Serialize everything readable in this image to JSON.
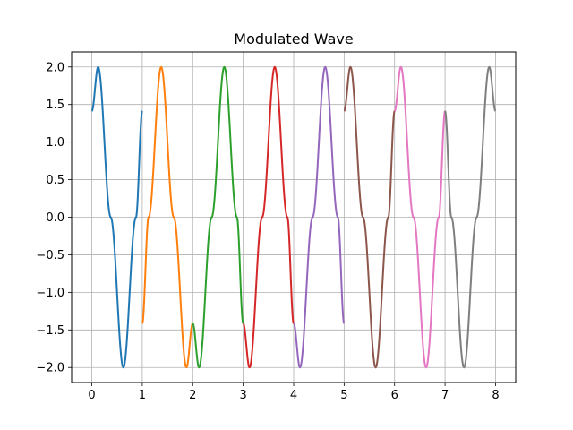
{
  "chart_data": {
    "type": "line",
    "title": "Modulated Wave",
    "xlabel": "",
    "ylabel": "",
    "xlim": [
      -0.4,
      8.4
    ],
    "ylim": [
      -2.2,
      2.2
    ],
    "xticks": [
      0,
      1,
      2,
      3,
      4,
      5,
      6,
      7,
      8
    ],
    "xtick_labels": [
      "0",
      "1",
      "2",
      "3",
      "4",
      "5",
      "6",
      "7",
      "8"
    ],
    "yticks": [
      2.0,
      1.5,
      1.0,
      0.5,
      0.0,
      -0.5,
      -1.0,
      -1.5,
      -2.0
    ],
    "ytick_labels": [
      "2.0",
      "1.5",
      "1.0",
      "0.5",
      "0.0",
      "−0.5",
      "−1.0",
      "−1.5",
      "−2.0"
    ],
    "grid": true,
    "legend": "none",
    "series": [
      {
        "color": "#1f77b4",
        "x": [
          0.0,
          0.125,
          0.375,
          0.625,
          0.875,
          1.0
        ],
        "y": [
          1.414,
          2.0,
          0.0,
          -2.0,
          0.0,
          1.414
        ]
      },
      {
        "color": "#ff7f0e",
        "x": [
          1.0,
          1.125,
          1.375,
          1.625,
          1.875,
          2.0
        ],
        "y": [
          -1.414,
          0.0,
          2.0,
          0.0,
          -2.0,
          -1.414
        ]
      },
      {
        "color": "#2ca02c",
        "x": [
          2.0,
          2.125,
          2.375,
          2.625,
          2.875,
          3.0
        ],
        "y": [
          -1.414,
          -2.0,
          0.0,
          2.0,
          0.0,
          -1.414
        ]
      },
      {
        "color": "#d62728",
        "x": [
          3.0,
          3.125,
          3.375,
          3.625,
          3.875,
          4.0
        ],
        "y": [
          -1.414,
          -2.0,
          0.0,
          2.0,
          0.0,
          -1.414
        ]
      },
      {
        "color": "#9467bd",
        "x": [
          4.0,
          4.125,
          4.375,
          4.625,
          4.875,
          5.0
        ],
        "y": [
          -1.414,
          -2.0,
          0.0,
          2.0,
          0.0,
          -1.414
        ]
      },
      {
        "color": "#8c564b",
        "x": [
          5.0,
          5.125,
          5.375,
          5.625,
          5.875,
          6.0
        ],
        "y": [
          1.414,
          2.0,
          0.0,
          -2.0,
          0.0,
          1.414
        ]
      },
      {
        "color": "#e377c2",
        "x": [
          6.0,
          6.125,
          6.375,
          6.625,
          6.875,
          7.0
        ],
        "y": [
          1.414,
          2.0,
          0.0,
          -2.0,
          0.0,
          1.414
        ]
      },
      {
        "color": "#7f7f7f",
        "x": [
          7.0,
          7.125,
          7.375,
          7.625,
          7.875,
          8.0
        ],
        "y": [
          1.414,
          0.0,
          -2.0,
          0.0,
          2.0,
          1.414
        ]
      }
    ]
  }
}
